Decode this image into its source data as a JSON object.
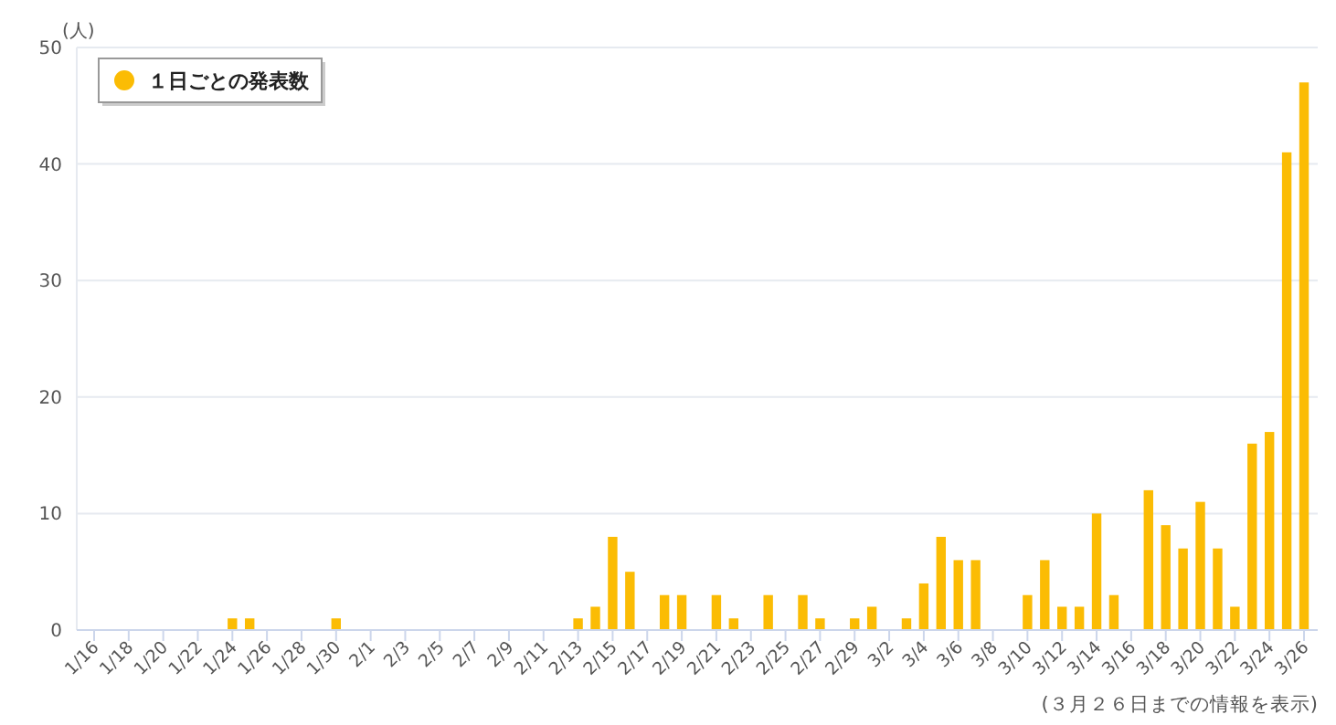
{
  "chart_data": {
    "type": "bar",
    "ylabel": "(人)",
    "categories": [
      "1/16",
      null,
      "1/18",
      null,
      "1/20",
      null,
      "1/22",
      null,
      "1/24",
      null,
      "1/26",
      null,
      "1/28",
      null,
      "1/30",
      null,
      "2/1",
      null,
      "2/3",
      null,
      "2/5",
      null,
      "2/7",
      null,
      "2/9",
      null,
      "2/11",
      null,
      "2/13",
      null,
      "2/15",
      null,
      "2/17",
      null,
      "2/19",
      null,
      "2/21",
      null,
      "2/23",
      null,
      "2/25",
      null,
      "2/27",
      null,
      "2/29",
      null,
      "3/2",
      null,
      "3/4",
      null,
      "3/6",
      null,
      "3/8",
      null,
      "3/10",
      null,
      "3/12",
      null,
      "3/14",
      null,
      "3/16",
      null,
      "3/18",
      null,
      "3/20",
      null,
      "3/22",
      null,
      "3/24",
      null,
      "3/26"
    ],
    "series": [
      {
        "name": "１日ごとの発表数",
        "color": "#fbbc04",
        "values": [
          0,
          0,
          0,
          0,
          0,
          0,
          0,
          0,
          1,
          1,
          0,
          0,
          0,
          0,
          1,
          0,
          0,
          0,
          0,
          0,
          0,
          0,
          0,
          0,
          0,
          0,
          0,
          0,
          1,
          2,
          8,
          5,
          0,
          3,
          3,
          0,
          3,
          1,
          0,
          3,
          0,
          3,
          1,
          0,
          1,
          2,
          0,
          1,
          4,
          8,
          6,
          6,
          0,
          0,
          3,
          6,
          2,
          2,
          10,
          3,
          0,
          12,
          9,
          7,
          11,
          7,
          2,
          16,
          17,
          41,
          47
        ]
      }
    ],
    "ylim": [
      0,
      50
    ],
    "yticks": [
      0,
      10,
      20,
      30,
      40,
      50
    ],
    "grid": "y",
    "legend": "top left",
    "marker": "circle",
    "annotations": [
      "(３月２６日までの情報を表示)"
    ]
  }
}
